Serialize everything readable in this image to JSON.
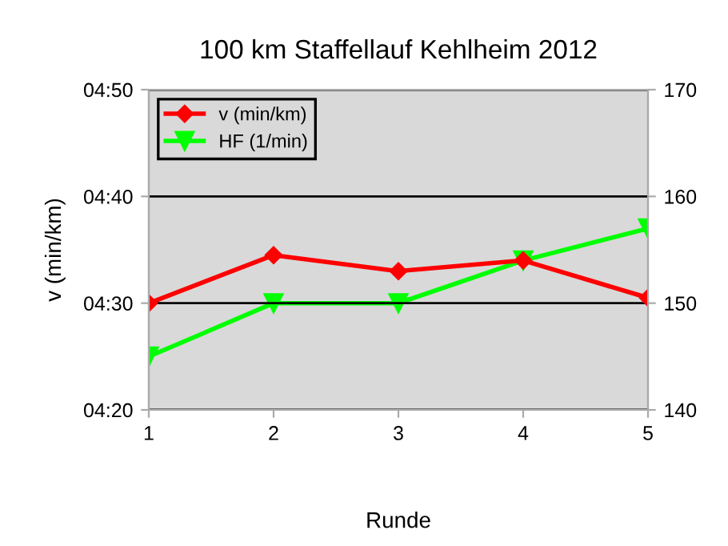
{
  "chart_data": {
    "type": "line",
    "title": "100 km Staffellauf Kehlheim 2012",
    "xlabel": "Runde",
    "ylabel": "v (min/km)",
    "x": [
      1,
      2,
      3,
      4,
      5
    ],
    "xlim": [
      1,
      5
    ],
    "xticks": [
      1,
      2,
      3,
      4,
      5
    ],
    "ylim": [
      260,
      290
    ],
    "yticks": [
      {
        "value": 260,
        "label": "04:20"
      },
      {
        "value": 270,
        "label": "04:30"
      },
      {
        "value": 280,
        "label": "04:40"
      },
      {
        "value": 290,
        "label": "04:50"
      }
    ],
    "y2lim": [
      140,
      170
    ],
    "y2ticks": [
      140,
      150,
      160,
      170
    ],
    "grid": "y",
    "legend": "top left",
    "line_style": "solid",
    "series": [
      {
        "name": "v (min/km)",
        "color": "#ff0000",
        "marker": "diamond",
        "values": [
          270,
          274.5,
          273,
          274,
          270.5
        ]
      },
      {
        "name": "HF (1/min)",
        "color": "#00ff00",
        "marker": "triangle",
        "axis": "y2",
        "values": [
          145,
          150,
          150,
          154,
          157
        ]
      }
    ]
  }
}
